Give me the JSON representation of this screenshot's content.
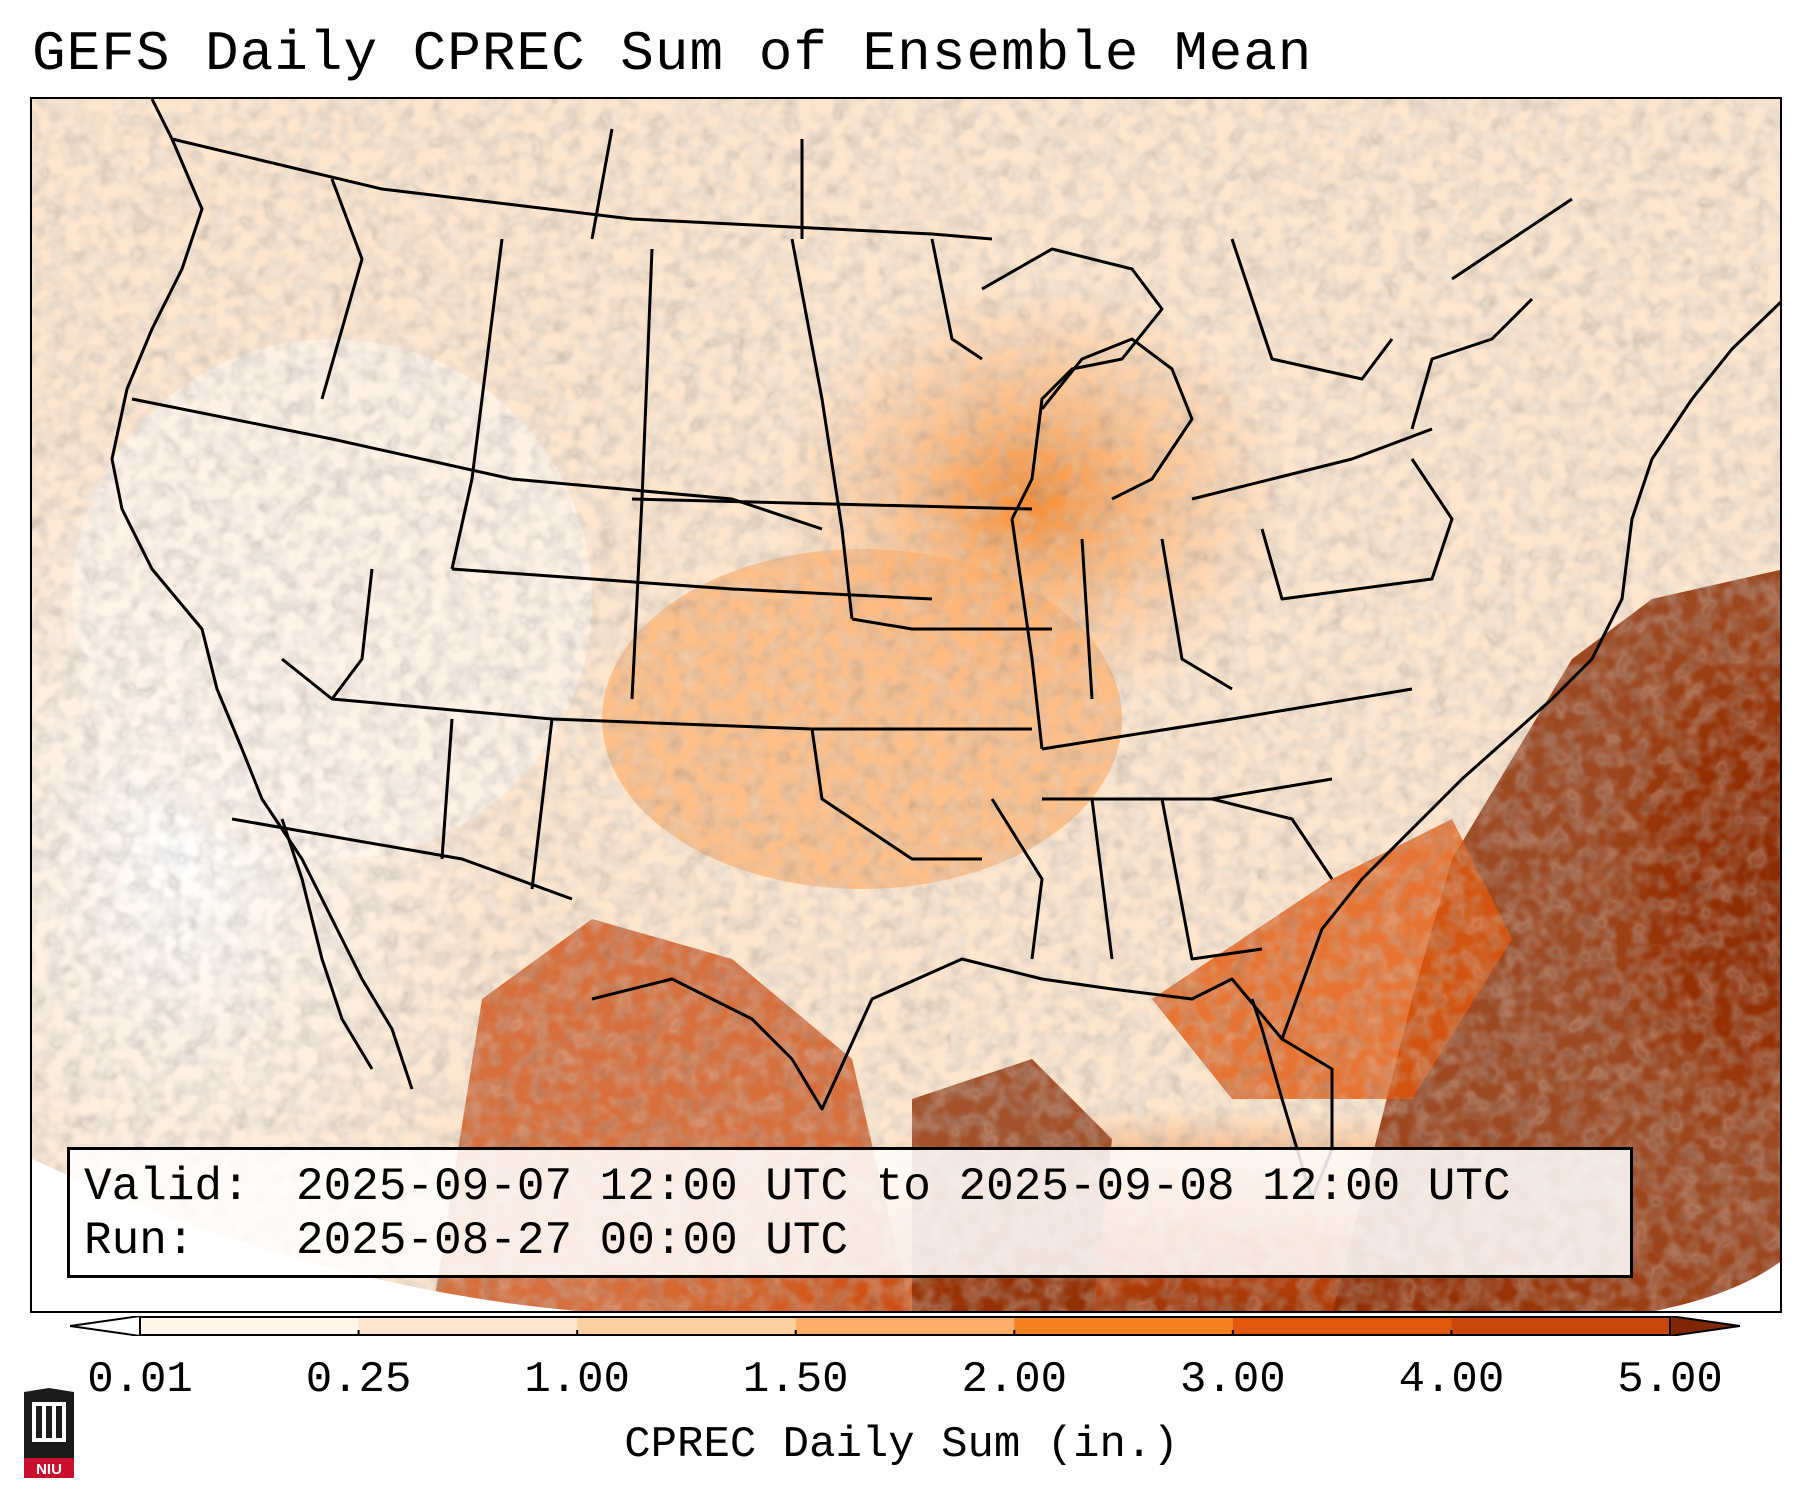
{
  "title": "GEFS Daily CPREC Sum of Ensemble Mean",
  "info": {
    "valid_label": "Valid:",
    "valid_value": "2025-09-07 12:00 UTC to 2025-09-08 12:00 UTC",
    "run_label": "Run:",
    "run_value": "2025-08-27 00:00 UTC"
  },
  "colorbar": {
    "label": "CPREC Daily Sum (in.)",
    "ticks": [
      "0.01",
      "0.25",
      "1.00",
      "1.50",
      "2.00",
      "3.00",
      "4.00",
      "5.00"
    ],
    "colors": [
      "#fff5eb",
      "#fee6ce",
      "#fdd0a2",
      "#fdae6b",
      "#f4801f",
      "#e1580d",
      "#c9470b",
      "#8c2d04"
    ],
    "under_color": "#ffffff",
    "over_color": "#7f2704"
  },
  "logo": {
    "text": "NIU",
    "icon": "niu-logo-icon"
  }
}
